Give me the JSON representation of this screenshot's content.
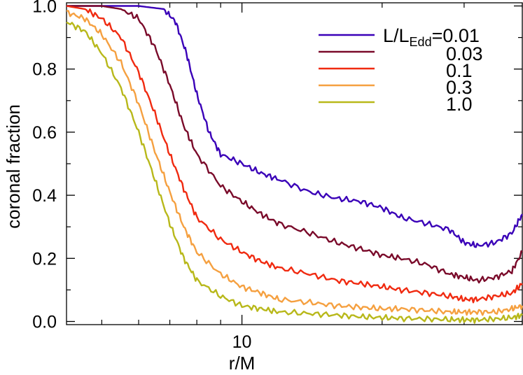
{
  "chart_data": {
    "type": "line",
    "xlabel": "r/M",
    "ylabel": "coronal fraction",
    "xscale": "log",
    "xlim": [
      4.2,
      40
    ],
    "ylim": [
      -0.01,
      1.01
    ],
    "yticks": [
      0.0,
      0.2,
      0.4,
      0.6,
      0.8,
      1.0
    ],
    "yticklabels": [
      "0.0",
      "0.2",
      "0.4",
      "0.6",
      "0.8",
      "1.0"
    ],
    "xticks_major": [
      10
    ],
    "xticklabels": [
      "10"
    ],
    "xticks_minor": [
      5,
      6,
      7,
      8,
      9,
      20,
      30,
      40
    ],
    "grid": false,
    "legend_placement": "top-right",
    "legend_title": "L/L",
    "legend_title_sub": "Edd",
    "series": [
      {
        "name": "=0.01",
        "color": "#3a00b8",
        "x": [
          4.2,
          5,
          6,
          6.8,
          7.2,
          7.6,
          8.0,
          8.5,
          9.0,
          10,
          11,
          12,
          14,
          16,
          18,
          20,
          22,
          25,
          28,
          30,
          32,
          35,
          38,
          40
        ],
        "y": [
          1.0,
          1.0,
          1.0,
          0.99,
          0.95,
          0.85,
          0.72,
          0.6,
          0.53,
          0.5,
          0.47,
          0.45,
          0.41,
          0.39,
          0.38,
          0.36,
          0.33,
          0.31,
          0.29,
          0.25,
          0.24,
          0.25,
          0.28,
          0.34
        ]
      },
      {
        "name": "0.03",
        "color": "#7a0a2a",
        "x": [
          4.2,
          5,
          5.5,
          6.0,
          6.5,
          7.0,
          7.5,
          8.0,
          9.0,
          10,
          11,
          12,
          14,
          16,
          18,
          20,
          22,
          25,
          28,
          30,
          32,
          35,
          38,
          40
        ],
        "y": [
          1.0,
          1.0,
          0.99,
          0.96,
          0.87,
          0.75,
          0.62,
          0.53,
          0.43,
          0.38,
          0.34,
          0.31,
          0.28,
          0.25,
          0.23,
          0.21,
          0.2,
          0.18,
          0.15,
          0.14,
          0.13,
          0.14,
          0.16,
          0.22
        ]
      },
      {
        "name": "0.1",
        "color": "#f02a10",
        "x": [
          4.2,
          4.6,
          5.0,
          5.5,
          6.0,
          6.5,
          7.0,
          7.5,
          8.0,
          9.0,
          10,
          11,
          12,
          14,
          16,
          18,
          20,
          22,
          25,
          28,
          30,
          32,
          35,
          38,
          40
        ],
        "y": [
          1.0,
          0.99,
          0.96,
          0.9,
          0.79,
          0.66,
          0.53,
          0.42,
          0.33,
          0.26,
          0.22,
          0.19,
          0.17,
          0.15,
          0.13,
          0.12,
          0.11,
          0.1,
          0.09,
          0.08,
          0.07,
          0.07,
          0.08,
          0.09,
          0.12
        ]
      },
      {
        "name": "0.3",
        "color": "#f5a040",
        "x": [
          4.2,
          4.6,
          5.0,
          5.5,
          6.0,
          6.5,
          7.0,
          7.5,
          8.0,
          9.0,
          10,
          11,
          12,
          14,
          16,
          18,
          20,
          22,
          25,
          28,
          30,
          32,
          35,
          38,
          40
        ],
        "y": [
          0.98,
          0.96,
          0.91,
          0.82,
          0.69,
          0.54,
          0.41,
          0.3,
          0.22,
          0.15,
          0.11,
          0.09,
          0.07,
          0.06,
          0.05,
          0.045,
          0.04,
          0.04,
          0.035,
          0.03,
          0.03,
          0.03,
          0.03,
          0.04,
          0.05
        ]
      },
      {
        "name": "1.0",
        "color": "#b8b81a",
        "x": [
          4.2,
          4.6,
          5.0,
          5.5,
          6.0,
          6.5,
          7.0,
          7.5,
          8.0,
          9.0,
          10,
          11,
          12,
          14,
          16,
          18,
          20,
          22,
          25,
          28,
          30,
          32,
          35,
          38,
          40
        ],
        "y": [
          0.95,
          0.92,
          0.85,
          0.74,
          0.6,
          0.45,
          0.31,
          0.2,
          0.13,
          0.08,
          0.05,
          0.04,
          0.03,
          0.025,
          0.02,
          0.015,
          0.012,
          0.01,
          0.008,
          0.006,
          0.005,
          0.005,
          0.008,
          0.012,
          0.02
        ]
      }
    ]
  }
}
